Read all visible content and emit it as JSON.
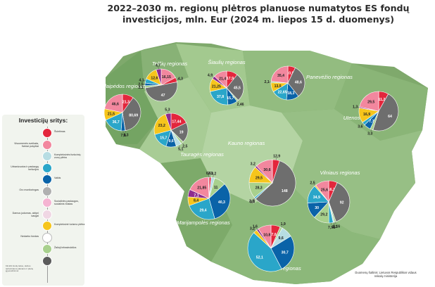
{
  "title": "2022–2030 m. regionų plėtros planuose numatytos ES fondų investicijos, mln. Eur (2024 m. liepos 15 d. duomenys)",
  "legend": {
    "title": "Investicijų sritys:",
    "items": [
      {
        "label": "Švietimas",
        "color": "#e3263c",
        "side": "right",
        "icon": "graduation-icon"
      },
      {
        "label": "Visuomenės sveikata, fiziniai pokyčiai",
        "color": "#f2879e",
        "side": "left",
        "icon": "health-icon"
      },
      {
        "label": "Kompleksinės funkcinių zonų plėtra",
        "color": "#b7dde3",
        "side": "right",
        "icon": "zone-icon"
      },
      {
        "label": "Urbanizuotos ir paslaugų teritorijos",
        "color": "#2aa6c9",
        "side": "left",
        "icon": "city-icon"
      },
      {
        "label": "Vaikis",
        "color": "#0a63a8",
        "side": "right",
        "icon": "child-icon"
      },
      {
        "label": "Oro monitoringas",
        "color": "#b0b0b0",
        "side": "left",
        "icon": "air-icon"
      },
      {
        "label": "Socialinės paslaugos, socialinis būstas",
        "color": "#f5b4d2",
        "side": "right",
        "icon": "social-icon"
      },
      {
        "label": "Darnus judumas, aktyvi saugai",
        "color": "#f0d7e4",
        "side": "left",
        "icon": "mobility-icon"
      },
      {
        "label": "Kompleksinė turizmo plėtra",
        "color": "#f6c51c",
        "side": "right",
        "icon": "tourism-icon"
      },
      {
        "label": "Nedarbo fondas",
        "color": "#ffffff",
        "side": "left",
        "icon": "work-icon"
      },
      {
        "label": "Žalioji infrastruktūra",
        "color": "#a8d08d",
        "side": "right",
        "icon": "green-icon"
      },
      {
        "label": "",
        "color": "#5b5b5b",
        "side": "right",
        "icon": "other-icon"
      }
    ],
    "note": "Kiti ES fondų lėšos, skirtos teritoriniams planams ir planų įgyvendinimui"
  },
  "regions": [
    {
      "name": "Telšių regionas",
      "id": "telsiai"
    },
    {
      "name": "Šiaulių regionas",
      "id": "siauliai"
    },
    {
      "name": "Panevėžio regionas",
      "id": "panevezys"
    },
    {
      "name": "Klaipėdos regionas",
      "id": "klaipeda"
    },
    {
      "name": "Utenos regionas",
      "id": "utena"
    },
    {
      "name": "Tauragės regionas",
      "id": "taurage"
    },
    {
      "name": "Kauno regionas",
      "id": "kaunas"
    },
    {
      "name": "Vilniaus regionas",
      "id": "vilnius"
    },
    {
      "name": "Marijampolės regionas",
      "id": "marijampole"
    },
    {
      "name": "Alytaus regionas",
      "id": "alytus"
    }
  ],
  "pies": [
    {
      "id": "telsiai",
      "slices": [
        {
          "value": 16.15,
          "color": "#f2879e"
        },
        {
          "value": 4.3,
          "color": "#e3263c"
        },
        {
          "value": 47,
          "color": "#6e6e6e"
        },
        {
          "value": 2.1,
          "color": "#a8d08d"
        },
        {
          "value": 2.5,
          "color": "#0a63a8"
        },
        {
          "value": 4.1,
          "color": "#2aa6c9"
        },
        {
          "value": 12.6,
          "color": "#f6c51c"
        },
        {
          "value": 4.7,
          "color": "#8e2b8e"
        }
      ]
    },
    {
      "id": "siauliai",
      "slices": [
        {
          "value": 17.9,
          "color": "#e3263c"
        },
        {
          "value": 45.5,
          "color": "#6e6e6e"
        },
        {
          "value": 2.46,
          "color": "#a8d08d"
        },
        {
          "value": 15.7,
          "color": "#0a63a8"
        },
        {
          "value": 37.8,
          "color": "#2aa6c9"
        },
        {
          "value": 21.25,
          "color": "#f6c51c"
        },
        {
          "value": 4.9,
          "color": "#8e2b8e"
        },
        {
          "value": 21.4,
          "color": "#f2879e"
        }
      ]
    },
    {
      "id": "panevezys",
      "slices": [
        {
          "value": 10.9,
          "color": "#e3263c"
        },
        {
          "value": 48.6,
          "color": "#6e6e6e"
        },
        {
          "value": 18.3,
          "color": "#0a63a8"
        },
        {
          "value": 22.65,
          "color": "#2aa6c9"
        },
        {
          "value": 13.5,
          "color": "#f6c51c"
        },
        {
          "value": 2.1,
          "color": "#a8d08d"
        },
        {
          "value": 35.4,
          "color": "#f2879e"
        }
      ]
    },
    {
      "id": "klaipeda",
      "slices": [
        {
          "value": 21.3,
          "color": "#e3263c"
        },
        {
          "value": 80.69,
          "color": "#6e6e6e"
        },
        {
          "value": 0.3,
          "color": "#a8d08d"
        },
        {
          "value": 7.8,
          "color": "#0a63a8"
        },
        {
          "value": 36.7,
          "color": "#2aa6c9"
        },
        {
          "value": 21.5,
          "color": "#f6c51c"
        },
        {
          "value": 46.6,
          "color": "#f2879e"
        }
      ]
    },
    {
      "id": "utena",
      "slices": [
        {
          "value": 11.2,
          "color": "#e3263c"
        },
        {
          "value": 64,
          "color": "#6e6e6e"
        },
        {
          "value": 3.3,
          "color": "#a8d08d"
        },
        {
          "value": 7.7,
          "color": "#0a63a8"
        },
        {
          "value": 3.6,
          "color": "#2aa6c9"
        },
        {
          "value": 16.9,
          "color": "#f6c51c"
        },
        {
          "value": 1.3,
          "color": "#8e2b8e"
        },
        {
          "value": 29.5,
          "color": "#f2879e"
        }
      ]
    },
    {
      "id": "taurage",
      "slices": [
        {
          "value": 17.44,
          "color": "#e3263c"
        },
        {
          "value": 19,
          "color": "#6e6e6e"
        },
        {
          "value": 2.5,
          "color": "#a8d08d"
        },
        {
          "value": 5.1,
          "color": "#b7dde3"
        },
        {
          "value": 9.6,
          "color": "#0a63a8"
        },
        {
          "value": 15.7,
          "color": "#2aa6c9"
        },
        {
          "value": 23.2,
          "color": "#f6c51c"
        },
        {
          "value": 5.3,
          "color": "#8e2b8e"
        }
      ]
    },
    {
      "id": "kaunas",
      "slices": [
        {
          "value": 12.9,
          "color": "#e3263c"
        },
        {
          "value": 148,
          "color": "#6e6e6e"
        },
        {
          "value": 0.3,
          "color": "#0a63a8"
        },
        {
          "value": 2.8,
          "color": "#2aa6c9"
        },
        {
          "value": 28.3,
          "color": "#a8d08d"
        },
        {
          "value": 29.5,
          "color": "#f6c51c"
        },
        {
          "value": 3.2,
          "color": "#8e2b8e"
        },
        {
          "value": 30.6,
          "color": "#f2879e"
        }
      ]
    },
    {
      "id": "vilnius",
      "slices": [
        {
          "value": 16.2,
          "color": "#e3263c"
        },
        {
          "value": 92,
          "color": "#6e6e6e"
        },
        {
          "value": 3.16,
          "color": "#a8d08d"
        },
        {
          "value": 2.3,
          "color": "#b7dde3"
        },
        {
          "value": 7.98,
          "color": "#2aa6c9"
        },
        {
          "value": 29.2,
          "color": "#a8d08d"
        },
        {
          "value": 30,
          "color": "#0a63a8"
        },
        {
          "value": 34.9,
          "color": "#2aa6c9"
        },
        {
          "value": 2.5,
          "color": "#f6c51c"
        },
        {
          "value": 25.6,
          "color": "#f2879e"
        }
      ]
    },
    {
      "id": "marijampole",
      "slices": [
        {
          "value": 2.1,
          "color": "#e3263c"
        },
        {
          "value": 3.2,
          "color": "#b7dde3"
        },
        {
          "value": 11,
          "color": "#a8d08d"
        },
        {
          "value": 40.3,
          "color": "#0a63a8"
        },
        {
          "value": 29.4,
          "color": "#2aa6c9"
        },
        {
          "value": 8.4,
          "color": "#f6c51c"
        },
        {
          "value": 7.1,
          "color": "#8e2b8e"
        },
        {
          "value": 21.85,
          "color": "#f2879e"
        },
        {
          "value": 0.6,
          "color": "#6e6e6e"
        }
      ]
    },
    {
      "id": "alytus",
      "slices": [
        {
          "value": 7.6,
          "color": "#e3263c"
        },
        {
          "value": 1.9,
          "color": "#a8d08d"
        },
        {
          "value": 9.6,
          "color": "#b7dde3"
        },
        {
          "value": 30.7,
          "color": "#0a63a8"
        },
        {
          "value": 52.1,
          "color": "#2aa6c9"
        },
        {
          "value": 3.2,
          "color": "#f6c51c"
        },
        {
          "value": 1.6,
          "color": "#8e2b8e"
        },
        {
          "value": 10.8,
          "color": "#f2879e"
        }
      ]
    }
  ],
  "source": "Duomenų šaltinis: Lietuvos Respublikos vidaus reikalų ministerija"
}
